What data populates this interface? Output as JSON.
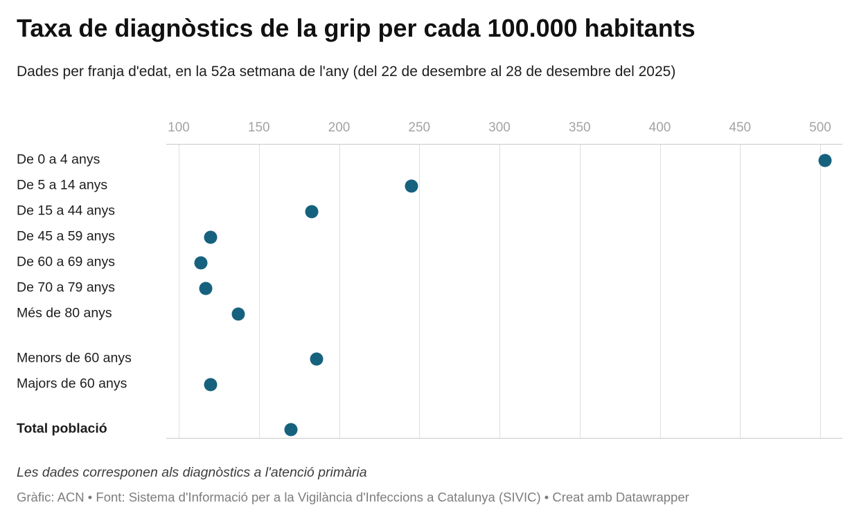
{
  "header": {
    "title": "Taxa de diagnòstics de la grip per cada 100.000 habitants",
    "subtitle": "Dades per franja d'edat, en la 52a setmana de l'any (del 22 de desembre al 28 de desembre del 2025)"
  },
  "chart_data": {
    "type": "scatter",
    "subtype": "horizontal-dot-plot",
    "title": "Taxa de diagnòstics de la grip per cada 100.000 habitants",
    "xlabel": "",
    "ylabel": "",
    "x_ticks": [
      100,
      150,
      200,
      250,
      300,
      350,
      400,
      450,
      500
    ],
    "xlim": [
      92,
      514
    ],
    "grid": true,
    "dot_color": "#16627e",
    "grid_color": "#dedede",
    "rows": [
      {
        "label": "De 0 a 4 anys",
        "value": 503,
        "bold": false,
        "gap_before": false
      },
      {
        "label": "De 5 a 14 anys",
        "value": 245,
        "bold": false,
        "gap_before": false
      },
      {
        "label": "De 15 a 44 anys",
        "value": 183,
        "bold": false,
        "gap_before": false
      },
      {
        "label": "De 45 a 59 anys",
        "value": 120,
        "bold": false,
        "gap_before": false
      },
      {
        "label": "De 60 a 69 anys",
        "value": 114,
        "bold": false,
        "gap_before": false
      },
      {
        "label": "De 70 a 79 anys",
        "value": 117,
        "bold": false,
        "gap_before": false
      },
      {
        "label": "Més de 80 anys",
        "value": 137,
        "bold": false,
        "gap_before": false
      },
      {
        "label": "Menors de 60 anys",
        "value": 186,
        "bold": false,
        "gap_before": true
      },
      {
        "label": "Majors de 60 anys",
        "value": 120,
        "bold": false,
        "gap_before": false
      },
      {
        "label": "Total població",
        "value": 170,
        "bold": true,
        "gap_before": true
      }
    ]
  },
  "footer": {
    "note": "Les dades corresponen als diagnòstics a l'atenció primària",
    "byline": "Gràfic: ACN • Font: Sistema d'Informació per a la Vigilància d'Infeccions a Catalunya (SIVIC) • Creat amb Datawrapper"
  }
}
